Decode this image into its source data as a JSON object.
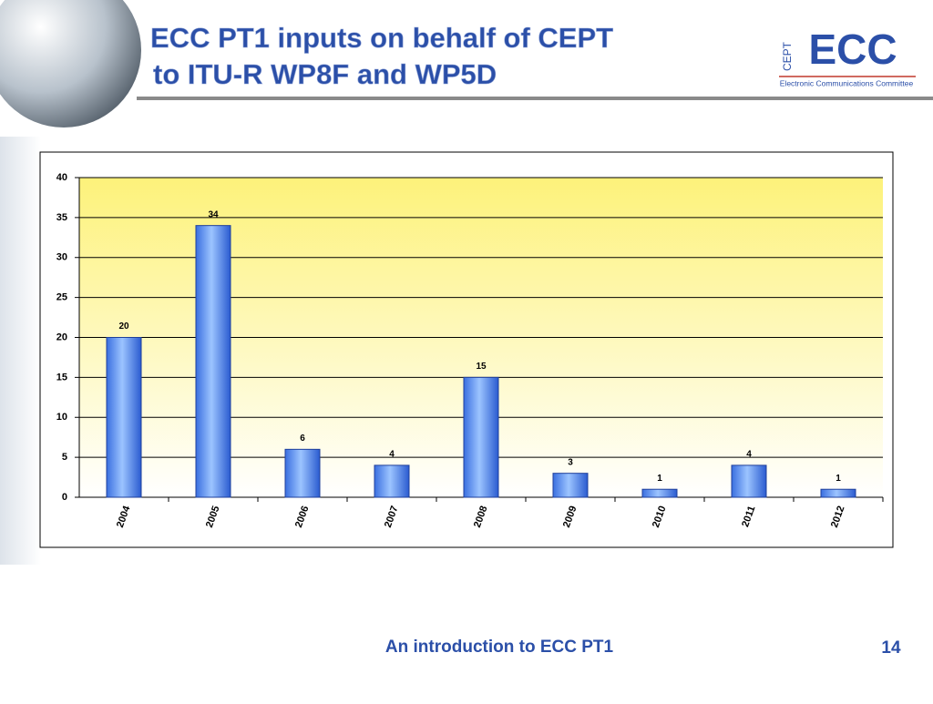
{
  "slide": {
    "title_lines": [
      "ECC PT1 inputs on behalf of CEPT",
      "to ITU-R WP8F and WP5D"
    ],
    "logo": {
      "vertical": "CEPT",
      "main": "ECC",
      "caption": "Electronic Communications Committee"
    },
    "footer": "An introduction to ECC PT1",
    "page_number": "14"
  },
  "chart_data": {
    "type": "bar",
    "categories": [
      "2004",
      "2005",
      "2006",
      "2007",
      "2008",
      "2009",
      "2010",
      "2011",
      "2012"
    ],
    "values": [
      20,
      34,
      6,
      4,
      15,
      3,
      1,
      4,
      1
    ],
    "color": "#3a78e8",
    "ylim": [
      0,
      40
    ],
    "yticks": [
      0,
      5,
      10,
      15,
      20,
      25,
      30,
      35,
      40
    ],
    "grid": true
  }
}
